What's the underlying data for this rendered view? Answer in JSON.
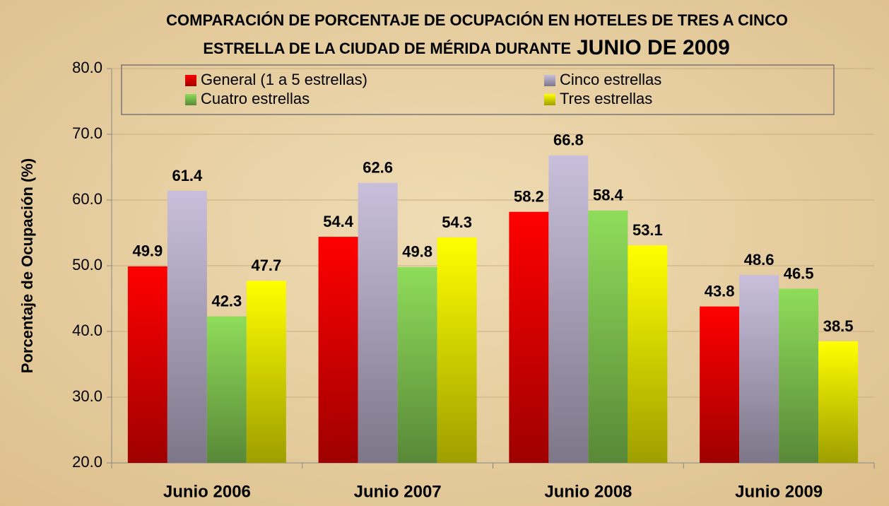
{
  "chart_data": {
    "type": "bar",
    "title": [
      "COMPARACIÓN DE PORCENTAJE DE OCUPACIÓN EN HOTELES DE TRES A CINCO",
      "ESTRELLA DE LA CIUDAD DE MÉRIDA DURANTE",
      "JUNIO DE 2009"
    ],
    "y_label": "Porcentaje de Ocupación (%)",
    "categories": [
      "Junio 2006",
      "Junio 2007",
      "Junio 2008",
      "Junio 2009"
    ],
    "series": [
      {
        "name": "General (1 a 5 estrellas)",
        "color": "#ff0000",
        "values": [
          49.9,
          54.4,
          58.2,
          43.8
        ]
      },
      {
        "name": "Cinco estrellas",
        "color": "#c9bfdc",
        "values": [
          61.4,
          62.6,
          66.8,
          48.6
        ]
      },
      {
        "name": "Cuatro estrellas",
        "color": "#8fdc5a",
        "values": [
          42.3,
          49.8,
          58.4,
          46.5
        ]
      },
      {
        "name": "Tres estrellas",
        "color": "#ffff00",
        "values": [
          47.7,
          54.3,
          53.1,
          38.5
        ]
      }
    ],
    "ylim": [
      20,
      80
    ],
    "yticks": [
      {
        "value": 20,
        "label": "20.0"
      },
      {
        "value": 30,
        "label": "30.0"
      },
      {
        "value": 40,
        "label": "40.0"
      },
      {
        "value": 50,
        "label": "50.0"
      },
      {
        "value": 60,
        "label": "60.0"
      },
      {
        "value": 70,
        "label": "70.0"
      },
      {
        "value": 80,
        "label": "80.0"
      }
    ],
    "grid": true,
    "legend": "top"
  }
}
